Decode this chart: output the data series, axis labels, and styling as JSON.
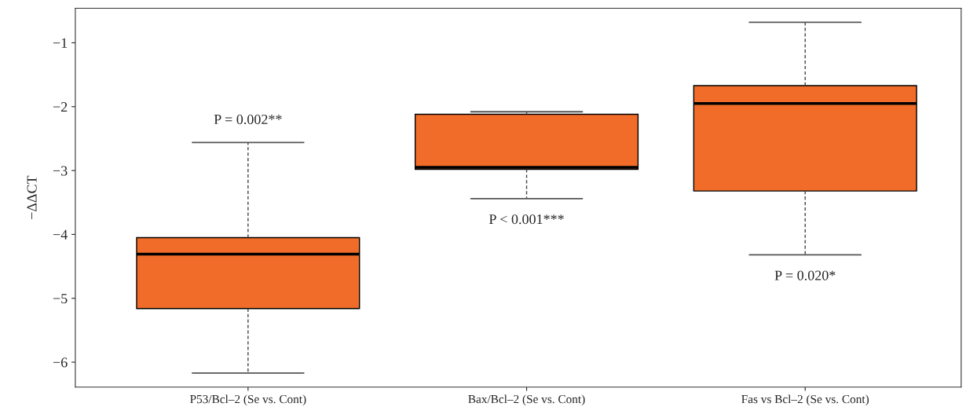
{
  "chart_data": {
    "type": "box",
    "ylabel": "−ΔΔCT",
    "categories": [
      "P53/Bcl–2 (Se vs. Cont)",
      "Bax/Bcl–2 (Se vs. Cont)",
      "Fas vs Bcl–2 (Se vs. Cont)"
    ],
    "series": [
      {
        "color": "#f06c28",
        "boxes": [
          {
            "low": -6.17,
            "q1": -5.16,
            "median": -4.31,
            "q3": -4.05,
            "high": -2.56
          },
          {
            "low": -3.44,
            "q1": -2.98,
            "median": -2.95,
            "q3": -2.12,
            "high": -2.08
          },
          {
            "low": -4.32,
            "q1": -3.32,
            "median": -1.95,
            "q3": -1.67,
            "high": -0.68
          }
        ]
      }
    ],
    "ylim": [
      -6.39,
      -0.46
    ],
    "yticks": [
      {
        "value": -6,
        "label": "−6"
      },
      {
        "value": -5,
        "label": "−5"
      },
      {
        "value": -4,
        "label": "−4"
      },
      {
        "value": -3,
        "label": "−3"
      },
      {
        "value": -2,
        "label": "−2"
      },
      {
        "value": -1,
        "label": "−1"
      }
    ],
    "annotations": [
      "P = 0.002**",
      "P < 0.001***",
      "P = 0.020*"
    ],
    "grid": false,
    "legend": false
  }
}
